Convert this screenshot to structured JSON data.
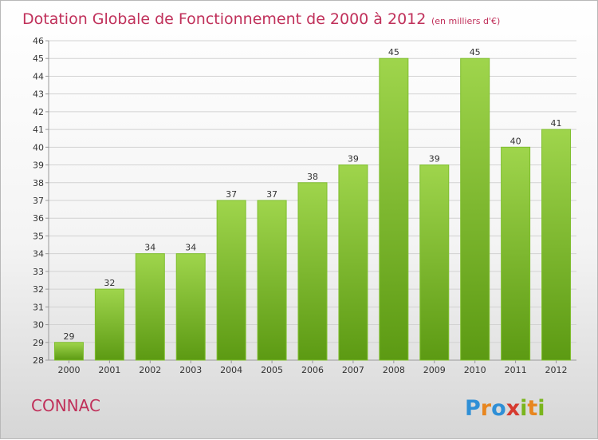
{
  "chart_data": {
    "type": "bar",
    "title": "Dotation Globale de Fonctionnement de 2000 à 2012",
    "subtitle": "(en milliers d'€)",
    "categories": [
      "2000",
      "2001",
      "2002",
      "2003",
      "2004",
      "2005",
      "2006",
      "2007",
      "2008",
      "2009",
      "2010",
      "2011",
      "2012"
    ],
    "values": [
      29,
      32,
      34,
      34,
      37,
      37,
      38,
      39,
      45,
      39,
      45,
      40,
      41
    ],
    "ylim": [
      28,
      46
    ],
    "yticks": [
      28,
      29,
      30,
      31,
      32,
      33,
      34,
      35,
      36,
      37,
      38,
      39,
      40,
      41,
      42,
      43,
      44,
      45,
      46
    ],
    "grid": true,
    "bar_color": "#7fbf2e",
    "bar_color_light": "#9fd54c",
    "bar_color_dark": "#5c9a13"
  },
  "commune": "CONNAC",
  "brand": {
    "letters": [
      "P",
      "r",
      "o",
      "x",
      "i",
      "t",
      "i"
    ],
    "colors": [
      "#2f8fd6",
      "#e8861f",
      "#2f8fd6",
      "#d63a2f",
      "#7ab51d",
      "#e8861f",
      "#7ab51d"
    ]
  }
}
